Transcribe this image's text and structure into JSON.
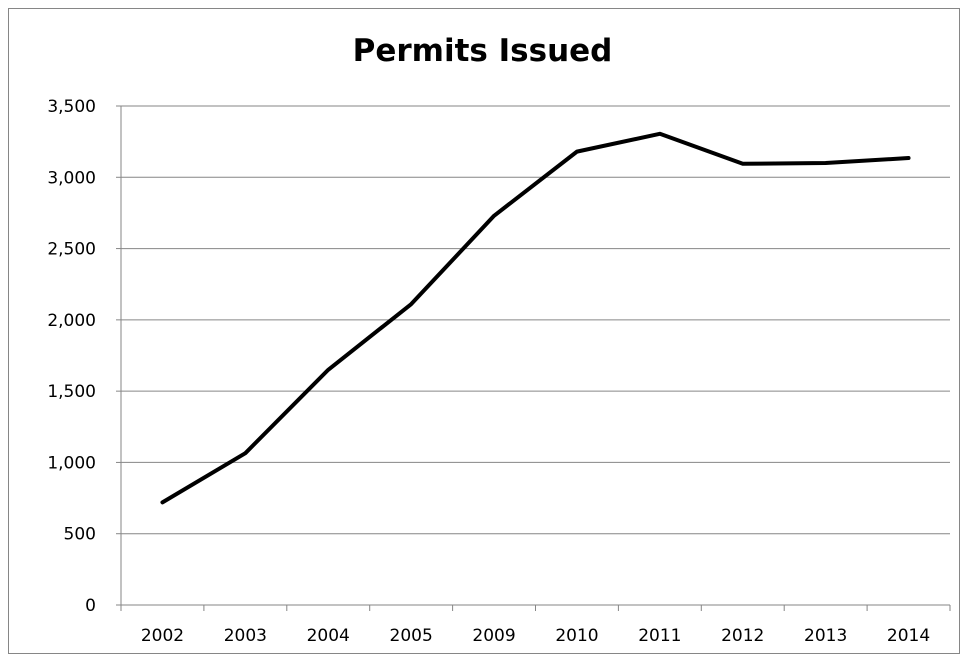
{
  "chart_data": {
    "type": "line",
    "title": "Permits Issued",
    "xlabel": "",
    "ylabel": "",
    "categories": [
      "2002",
      "2003",
      "2004",
      "2005",
      "2009",
      "2010",
      "2011",
      "2012",
      "2013",
      "2014"
    ],
    "series": [
      {
        "values": [
          720,
          1065,
          1650,
          2110,
          2730,
          3180,
          3305,
          3095,
          3100,
          3135
        ],
        "color": "#000000"
      }
    ],
    "ylim": [
      0,
      3500
    ],
    "yticks": [
      0,
      500,
      1000,
      1500,
      2000,
      2500,
      3000,
      3500
    ],
    "ytick_labels": [
      "0",
      "500",
      "1,000",
      "1,500",
      "2,000",
      "2,500",
      "3,000",
      "3,500"
    ],
    "grid": "horizontal",
    "legend": "none"
  }
}
